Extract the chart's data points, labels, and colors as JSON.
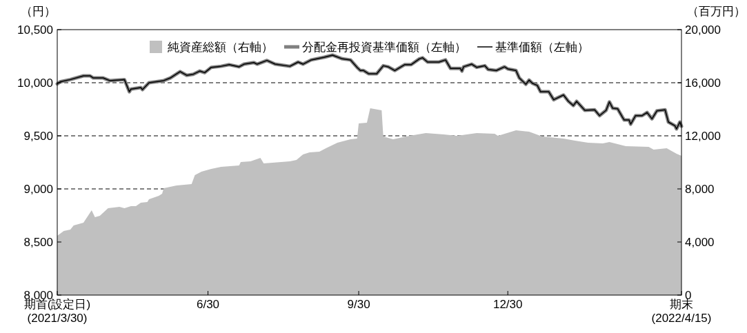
{
  "chart_data": {
    "type": "line",
    "ylabel": "（円）",
    "y2label": "（百万円）",
    "xlim": [
      "2021-03-30",
      "2022-04-15"
    ],
    "xticks": [
      {
        "value": "2021-03-30",
        "label": "期首(設定日)\n(2021/3/30)"
      },
      {
        "value": "2021-06-30",
        "label": "6/30"
      },
      {
        "value": "2021-09-30",
        "label": "9/30"
      },
      {
        "value": "2021-12-30",
        "label": "12/30"
      },
      {
        "value": "2022-04-15",
        "label": "期末\n(2022/4/15)"
      }
    ],
    "ylim": [
      8000,
      10500
    ],
    "yticks": [
      {
        "value": 8000,
        "label": "8,000"
      },
      {
        "value": 8500,
        "label": "8,500"
      },
      {
        "value": 9000,
        "label": "9,000"
      },
      {
        "value": 9500,
        "label": "9,500"
      },
      {
        "value": 10000,
        "label": "10,000"
      },
      {
        "value": 10500,
        "label": "10,500"
      }
    ],
    "y2lim": [
      0,
      20000
    ],
    "y2ticks": [
      0,
      {
        "value": 4000,
        "label": "4,000"
      },
      {
        "value": 8000,
        "label": "8,000"
      },
      {
        "value": 12000,
        "label": "12,000"
      },
      {
        "value": 16000,
        "label": "16,000"
      },
      {
        "value": 20000,
        "label": "20,000"
      }
    ],
    "grid": "y",
    "legend": "top",
    "line_style": "solid",
    "series": [
      {
        "name": "純資産総額（右軸）",
        "type": "area",
        "axis": "y2",
        "color": "#c0c0c0",
        "x": [
          "2021-03-30",
          "2021-04-03",
          "2021-04-07",
          "2021-04-09",
          "2021-04-15",
          "2021-04-20",
          "2021-04-22",
          "2021-04-25",
          "2021-04-30",
          "2021-05-07",
          "2021-05-10",
          "2021-05-14",
          "2021-05-17",
          "2021-05-20",
          "2021-05-24",
          "2021-05-25",
          "2021-05-31",
          "2021-06-02",
          "2021-06-03",
          "2021-06-11",
          "2021-06-20",
          "2021-06-22",
          "2021-06-26",
          "2021-07-02",
          "2021-07-08",
          "2021-07-19",
          "2021-07-20",
          "2021-07-26",
          "2021-08-01",
          "2021-08-03",
          "2021-08-19",
          "2021-08-23",
          "2021-08-27",
          "2021-08-31",
          "2021-09-06",
          "2021-09-10",
          "2021-09-17",
          "2021-09-25",
          "2021-09-29",
          "2021-09-30",
          "2021-10-05",
          "2021-10-07",
          "2021-10-14",
          "2021-10-15",
          "2021-10-21",
          "2021-10-31",
          "2021-11-10",
          "2021-11-21",
          "2021-11-29",
          "2021-12-11",
          "2021-12-22",
          "2021-12-24",
          "2022-01-04",
          "2022-01-12",
          "2022-01-20",
          "2022-02-02",
          "2022-02-09",
          "2022-02-17",
          "2022-02-26",
          "2022-03-02",
          "2022-03-12",
          "2022-03-26",
          "2022-03-29",
          "2022-04-06",
          "2022-04-12",
          "2022-04-15"
        ],
        "values": [
          4470,
          4830,
          4930,
          5250,
          5450,
          6390,
          5870,
          5970,
          6550,
          6650,
          6550,
          6700,
          6700,
          6960,
          7010,
          7220,
          7480,
          7640,
          8050,
          8260,
          8360,
          9040,
          9300,
          9510,
          9660,
          9770,
          10030,
          10080,
          10340,
          9920,
          10080,
          10180,
          10600,
          10750,
          10810,
          11070,
          11480,
          11740,
          11790,
          12940,
          12990,
          14080,
          13920,
          11950,
          11740,
          12000,
          12210,
          12100,
          12000,
          12210,
          12160,
          12000,
          12420,
          12310,
          11950,
          11790,
          11640,
          11480,
          11430,
          11530,
          11220,
          11170,
          10960,
          11070,
          10650,
          10490
        ]
      },
      {
        "name": "分配金再投資基準価額（左軸）",
        "type": "line",
        "color": "#808080",
        "x": [
          "2021-03-30",
          "2021-04-01",
          "2021-04-07",
          "2021-04-15",
          "2021-04-19",
          "2021-04-21",
          "2021-04-27",
          "2021-05-01",
          "2021-05-10",
          "2021-05-13",
          "2021-05-14",
          "2021-05-20",
          "2021-05-21",
          "2021-05-25",
          "2021-06-03",
          "2021-06-07",
          "2021-06-13",
          "2021-06-17",
          "2021-06-21",
          "2021-06-25",
          "2021-06-28",
          "2021-07-02",
          "2021-07-08",
          "2021-07-13",
          "2021-07-19",
          "2021-07-22",
          "2021-07-28",
          "2021-07-30",
          "2021-08-05",
          "2021-08-10",
          "2021-08-19",
          "2021-08-24",
          "2021-08-27",
          "2021-09-01",
          "2021-09-09",
          "2021-09-14",
          "2021-09-20",
          "2021-09-25",
          "2021-09-29",
          "2021-10-01",
          "2021-10-03",
          "2021-10-06",
          "2021-10-11",
          "2021-10-15",
          "2021-10-18",
          "2021-10-22",
          "2021-10-28",
          "2021-11-01",
          "2021-11-06",
          "2021-11-08",
          "2021-11-11",
          "2021-11-18",
          "2021-11-22",
          "2021-11-25",
          "2021-12-01",
          "2021-12-02",
          "2021-12-03",
          "2021-12-08",
          "2021-12-11",
          "2021-12-16",
          "2021-12-18",
          "2021-12-23",
          "2021-12-28",
          "2021-12-30",
          "2022-01-04",
          "2022-01-06",
          "2022-01-10",
          "2022-01-12",
          "2022-01-14",
          "2022-01-17",
          "2022-01-19",
          "2022-01-24",
          "2022-01-27",
          "2022-01-29",
          "2022-02-02",
          "2022-02-05",
          "2022-02-08",
          "2022-02-10",
          "2022-02-15",
          "2022-02-21",
          "2022-02-24",
          "2022-02-28",
          "2022-03-02",
          "2022-03-04",
          "2022-03-07",
          "2022-03-10",
          "2022-03-11",
          "2022-03-14",
          "2022-03-15",
          "2022-03-18",
          "2022-03-22",
          "2022-03-25",
          "2022-03-28",
          "2022-03-31",
          "2022-04-05",
          "2022-04-07",
          "2022-04-11",
          "2022-04-12",
          "2022-04-14",
          "2022-04-15"
        ],
        "values": [
          9990,
          10010,
          10030,
          10065,
          10065,
          10045,
          10045,
          10020,
          10030,
          9915,
          9940,
          9955,
          9935,
          10000,
          10020,
          10045,
          10105,
          10070,
          10080,
          10110,
          10095,
          10145,
          10155,
          10170,
          10150,
          10175,
          10190,
          10175,
          10210,
          10175,
          10155,
          10195,
          10175,
          10215,
          10240,
          10260,
          10225,
          10215,
          10145,
          10115,
          10115,
          10085,
          10085,
          10160,
          10150,
          10115,
          10170,
          10170,
          10225,
          10235,
          10195,
          10195,
          10215,
          10135,
          10135,
          10110,
          10150,
          10175,
          10145,
          10160,
          10125,
          10115,
          10150,
          10130,
          10115,
          10045,
          9985,
          10025,
          9995,
          9975,
          9915,
          9915,
          9840,
          9855,
          9885,
          9825,
          9785,
          9825,
          9740,
          9745,
          9690,
          9740,
          9820,
          9760,
          9755,
          9675,
          9650,
          9650,
          9610,
          9690,
          9690,
          9720,
          9660,
          9735,
          9745,
          9630,
          9595,
          9565,
          9630,
          9590
        ]
      },
      {
        "name": "基準価額（左軸）",
        "type": "line",
        "color": "#000000",
        "x": [
          "2021-03-30",
          "2021-04-01",
          "2021-04-07",
          "2021-04-15",
          "2021-04-19",
          "2021-04-21",
          "2021-04-27",
          "2021-05-01",
          "2021-05-10",
          "2021-05-13",
          "2021-05-14",
          "2021-05-20",
          "2021-05-21",
          "2021-05-25",
          "2021-06-03",
          "2021-06-07",
          "2021-06-13",
          "2021-06-17",
          "2021-06-21",
          "2021-06-25",
          "2021-06-28",
          "2021-07-02",
          "2021-07-08",
          "2021-07-13",
          "2021-07-19",
          "2021-07-22",
          "2021-07-28",
          "2021-07-30",
          "2021-08-05",
          "2021-08-10",
          "2021-08-19",
          "2021-08-24",
          "2021-08-27",
          "2021-09-01",
          "2021-09-09",
          "2021-09-14",
          "2021-09-20",
          "2021-09-25",
          "2021-09-29",
          "2021-10-01",
          "2021-10-03",
          "2021-10-06",
          "2021-10-11",
          "2021-10-15",
          "2021-10-18",
          "2021-10-22",
          "2021-10-28",
          "2021-11-01",
          "2021-11-06",
          "2021-11-08",
          "2021-11-11",
          "2021-11-18",
          "2021-11-22",
          "2021-11-25",
          "2021-12-01",
          "2021-12-02",
          "2021-12-03",
          "2021-12-08",
          "2021-12-11",
          "2021-12-16",
          "2021-12-18",
          "2021-12-23",
          "2021-12-28",
          "2021-12-30",
          "2022-01-04",
          "2022-01-06",
          "2022-01-10",
          "2022-01-12",
          "2022-01-14",
          "2022-01-17",
          "2022-01-19",
          "2022-01-24",
          "2022-01-27",
          "2022-01-29",
          "2022-02-02",
          "2022-02-05",
          "2022-02-08",
          "2022-02-10",
          "2022-02-15",
          "2022-02-21",
          "2022-02-24",
          "2022-02-28",
          "2022-03-02",
          "2022-03-04",
          "2022-03-07",
          "2022-03-10",
          "2022-03-11",
          "2022-03-14",
          "2022-03-15",
          "2022-03-18",
          "2022-03-22",
          "2022-03-25",
          "2022-03-28",
          "2022-03-31",
          "2022-04-05",
          "2022-04-07",
          "2022-04-11",
          "2022-04-12",
          "2022-04-14",
          "2022-04-15"
        ],
        "values": [
          9990,
          10010,
          10030,
          10065,
          10065,
          10045,
          10045,
          10020,
          10030,
          9915,
          9940,
          9955,
          9935,
          10000,
          10020,
          10045,
          10105,
          10070,
          10080,
          10110,
          10095,
          10145,
          10155,
          10170,
          10150,
          10175,
          10190,
          10175,
          10210,
          10175,
          10155,
          10195,
          10175,
          10215,
          10240,
          10260,
          10225,
          10215,
          10145,
          10115,
          10115,
          10085,
          10085,
          10160,
          10150,
          10115,
          10170,
          10170,
          10225,
          10235,
          10195,
          10195,
          10215,
          10135,
          10135,
          10110,
          10150,
          10175,
          10145,
          10160,
          10125,
          10115,
          10150,
          10130,
          10115,
          10045,
          9985,
          10025,
          9995,
          9975,
          9915,
          9915,
          9840,
          9855,
          9885,
          9825,
          9785,
          9825,
          9740,
          9745,
          9690,
          9740,
          9820,
          9760,
          9755,
          9675,
          9650,
          9650,
          9610,
          9690,
          9690,
          9720,
          9660,
          9735,
          9745,
          9630,
          9595,
          9565,
          9630,
          9590
        ]
      }
    ]
  }
}
